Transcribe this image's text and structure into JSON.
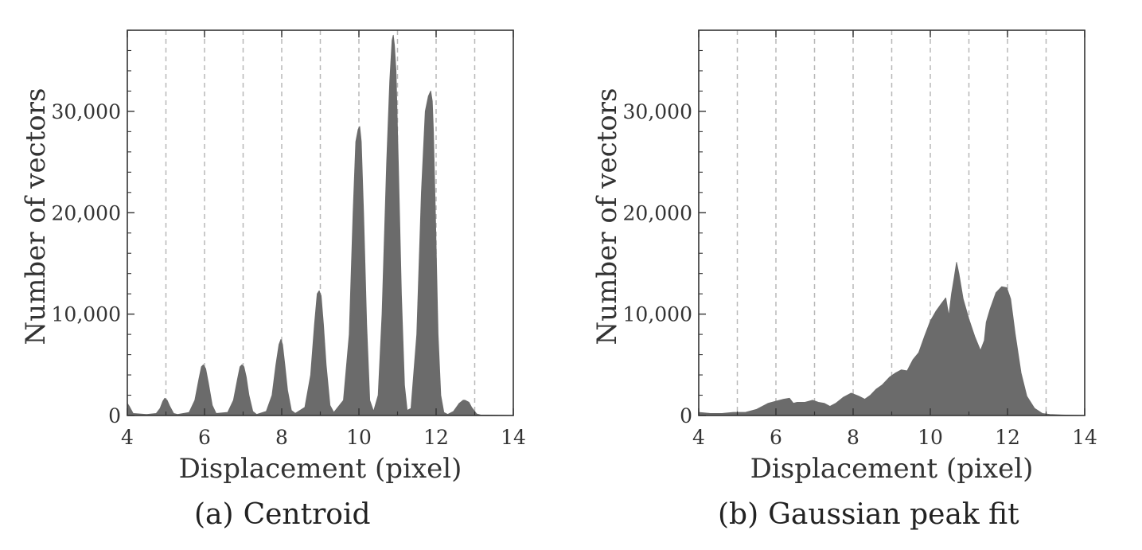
{
  "chart_data": [
    {
      "type": "area",
      "caption_tag": "(a)",
      "caption_text": "Centroid",
      "xlabel": "Displacement (pixel)",
      "ylabel": "Number of vectors",
      "xlim": [
        4,
        14
      ],
      "ylim": [
        0,
        38000
      ],
      "xticks": [
        4,
        6,
        8,
        10,
        12,
        14
      ],
      "yticks": [
        0,
        10000,
        20000,
        30000
      ],
      "ytick_labels": [
        "0",
        "10,000",
        "20,000",
        "30,000"
      ],
      "minor_x_ticks": [
        5,
        7,
        9,
        11,
        13
      ],
      "grid": "dashed vertical lines at every integer displacement",
      "fill_color": "#6b6b6b",
      "x": [
        4.0,
        4.05,
        4.15,
        4.5,
        4.75,
        4.85,
        4.92,
        4.97,
        5.03,
        5.1,
        5.2,
        5.3,
        5.6,
        5.75,
        5.85,
        5.92,
        5.97,
        6.03,
        6.1,
        6.2,
        6.3,
        6.6,
        6.75,
        6.85,
        6.92,
        6.97,
        7.02,
        7.08,
        7.15,
        7.25,
        7.35,
        7.6,
        7.75,
        7.85,
        7.93,
        7.98,
        8.02,
        8.08,
        8.15,
        8.25,
        8.35,
        8.6,
        8.75,
        8.85,
        8.92,
        8.97,
        9.02,
        9.08,
        9.15,
        9.25,
        9.35,
        9.6,
        9.75,
        9.85,
        9.92,
        9.98,
        10.02,
        10.06,
        10.12,
        10.2,
        10.28,
        10.38,
        10.5,
        10.6,
        10.72,
        10.8,
        10.86,
        10.89,
        10.92,
        10.96,
        11.02,
        11.1,
        11.18,
        11.25,
        11.35,
        11.5,
        11.62,
        11.72,
        11.8,
        11.86,
        11.9,
        11.93,
        11.98,
        12.05,
        12.12,
        12.2,
        12.3,
        12.45,
        12.6,
        12.7,
        12.75,
        12.85,
        12.92,
        13.0,
        13.05,
        13.15,
        13.5,
        14.0
      ],
      "y": [
        1200,
        900,
        200,
        100,
        200,
        700,
        1400,
        1700,
        1500,
        900,
        200,
        100,
        300,
        1500,
        3500,
        4800,
        5000,
        4600,
        3200,
        1000,
        200,
        300,
        1500,
        3500,
        4800,
        5000,
        4800,
        3800,
        2000,
        400,
        100,
        400,
        2000,
        5000,
        7000,
        7500,
        7000,
        5000,
        2500,
        500,
        200,
        800,
        4000,
        9000,
        12000,
        12300,
        11800,
        9000,
        5000,
        1000,
        300,
        1500,
        8000,
        20000,
        27000,
        28200,
        28500,
        27000,
        20000,
        9000,
        1500,
        400,
        2000,
        10000,
        25000,
        33000,
        37000,
        37500,
        36500,
        34000,
        25000,
        12000,
        3000,
        500,
        700,
        8000,
        22000,
        30000,
        31500,
        32000,
        31000,
        28000,
        20000,
        8000,
        2000,
        300,
        100,
        400,
        1200,
        1500,
        1500,
        1300,
        800,
        400,
        150,
        50,
        30,
        0
      ]
    },
    {
      "type": "area",
      "caption_tag": "(b)",
      "caption_text": "Gaussian peak fit",
      "xlabel": "Displacement (pixel)",
      "ylabel": "Number of vectors",
      "xlim": [
        4,
        14
      ],
      "ylim": [
        0,
        38000
      ],
      "xticks": [
        4,
        6,
        8,
        10,
        12,
        14
      ],
      "yticks": [
        0,
        10000,
        20000,
        30000
      ],
      "ytick_labels": [
        "0",
        "10,000",
        "20,000",
        "30,000"
      ],
      "minor_x_ticks": [
        5,
        7,
        9,
        11,
        13
      ],
      "grid": "dashed vertical lines at every integer displacement",
      "fill_color": "#6b6b6b",
      "x": [
        4.0,
        4.3,
        4.6,
        4.9,
        5.2,
        5.5,
        5.8,
        6.0,
        6.2,
        6.35,
        6.45,
        6.55,
        6.75,
        6.95,
        7.1,
        7.25,
        7.4,
        7.55,
        7.75,
        7.95,
        8.15,
        8.3,
        8.45,
        8.6,
        8.75,
        8.95,
        9.1,
        9.25,
        9.4,
        9.55,
        9.7,
        9.85,
        10.0,
        10.15,
        10.3,
        10.4,
        10.48,
        10.55,
        10.62,
        10.68,
        10.74,
        10.85,
        11.0,
        11.15,
        11.3,
        11.4,
        11.45,
        11.55,
        11.7,
        11.85,
        11.98,
        12.08,
        12.2,
        12.35,
        12.5,
        12.7,
        12.9,
        13.1,
        13.4,
        13.7,
        14.0
      ],
      "y": [
        300,
        200,
        200,
        300,
        300,
        600,
        1200,
        1400,
        1600,
        1700,
        1200,
        1300,
        1300,
        1500,
        1300,
        1200,
        900,
        1200,
        1800,
        2200,
        1900,
        1600,
        2000,
        2600,
        3000,
        3800,
        4200,
        4500,
        4400,
        5500,
        6200,
        7800,
        9300,
        10300,
        11100,
        11600,
        9800,
        12000,
        13600,
        15100,
        14000,
        11500,
        9500,
        7800,
        6400,
        7400,
        9200,
        10500,
        12100,
        12700,
        12600,
        11500,
        8000,
        4200,
        1900,
        700,
        200,
        100,
        50,
        20,
        0
      ]
    }
  ]
}
